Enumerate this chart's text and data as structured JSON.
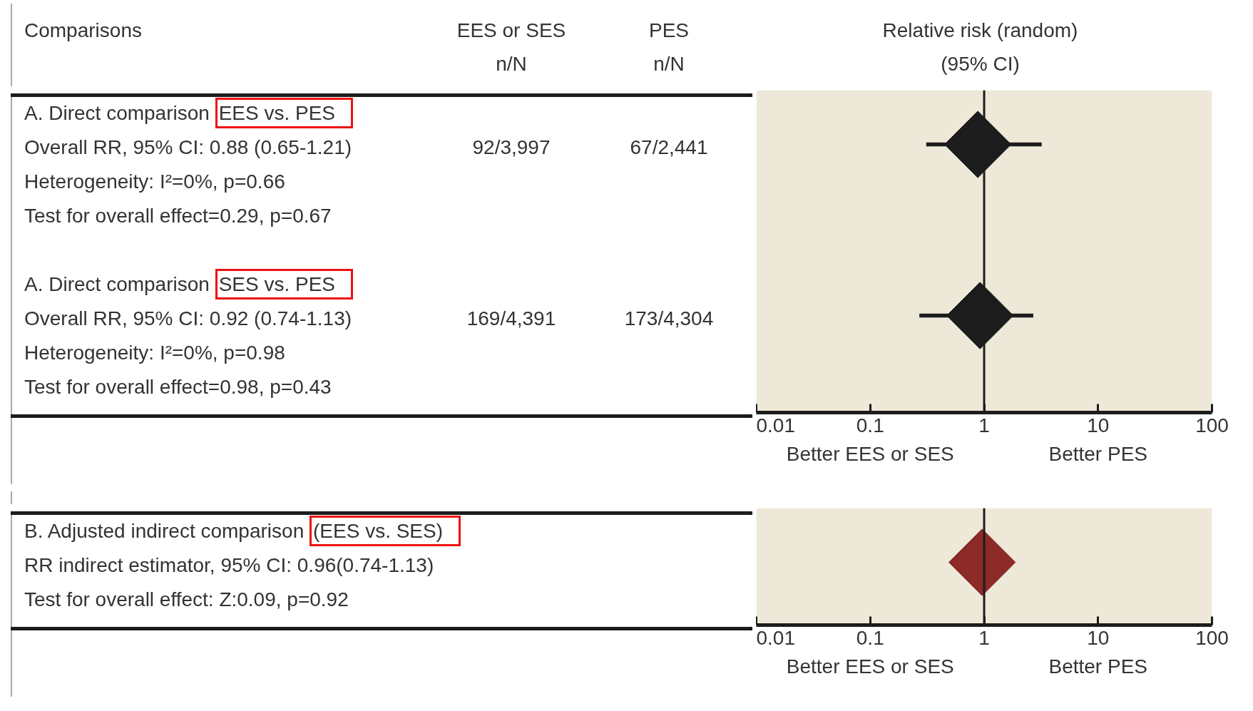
{
  "chart_data": [
    {
      "type": "scatter",
      "orientation": "horizontal",
      "title": "Relative risk (random)\n(95% CI)",
      "ylabel": "Comparisons",
      "categories": [
        null,
        null
      ],
      "values": [
        0.88,
        0.92
      ],
      "color": "#1c1c1c",
      "errors": [
        [
          0.31,
          3.2
        ],
        [
          0.27,
          2.7
        ]
      ],
      "annotations": [
        "EES or SES\nn/N",
        "PES\nn/N",
        "A. Direct comparison",
        "EES vs. PES",
        "Overall RR, 95% CI: 0.88 (0.65-1.21)",
        "92/3,997",
        "67/2,441",
        "Heterogeneity: I²=0%, p=0.66",
        "Test for overall effect=0.29, p=0.67",
        "A. Direct comparison",
        "SES vs. PES",
        "Overall RR, 95% CI: 0.92 (0.74-1.13)",
        "169/4,391",
        "173/4,304",
        "Heterogeneity: I²=0%, p=0.98",
        "Test for overall effect=0.98, p=0.43"
      ],
      "xlim": [
        0.01,
        100
      ],
      "xticks": [
        0.01,
        0.1,
        1,
        10,
        100
      ],
      "log": "x",
      "marker": "diamond",
      "ref_lines": [
        {
          "axis": "x",
          "value": 1,
          "color": "#1c1c1c"
        }
      ],
      "bands": [
        {
          "axis": "x",
          "from": 0.01,
          "to": 1,
          "label": "Better EES or SES",
          "color": "#ede8d8"
        },
        {
          "axis": "x",
          "from": 1,
          "to": 100,
          "label": "Better PES",
          "color": "#ede8d8"
        }
      ]
    },
    {
      "type": "scatter",
      "orientation": "horizontal",
      "categories": [
        null
      ],
      "values": [
        0.96
      ],
      "color": "#8b2a26",
      "annotations": [
        "B. Adjusted indirect comparison",
        "(EES vs. SES)",
        "RR indirect estimator, 95% CI: 0.96(0.74-1.13)",
        "Test for overall effect: Z:0.09, p=0.92"
      ],
      "xlim": [
        0.01,
        100
      ],
      "xticks": [
        0.01,
        0.1,
        1,
        10,
        100
      ],
      "log": "x",
      "marker": "diamond",
      "ref_lines": [
        {
          "axis": "x",
          "value": 1,
          "color": "#1c1c1c"
        }
      ],
      "bands": [
        {
          "axis": "x",
          "from": 0.01,
          "to": 1,
          "label": "Better EES or SES",
          "color": "#ede8d8"
        },
        {
          "axis": "x",
          "from": 1,
          "to": 100,
          "label": "Better PES",
          "color": "#ede8d8"
        }
      ]
    }
  ]
}
